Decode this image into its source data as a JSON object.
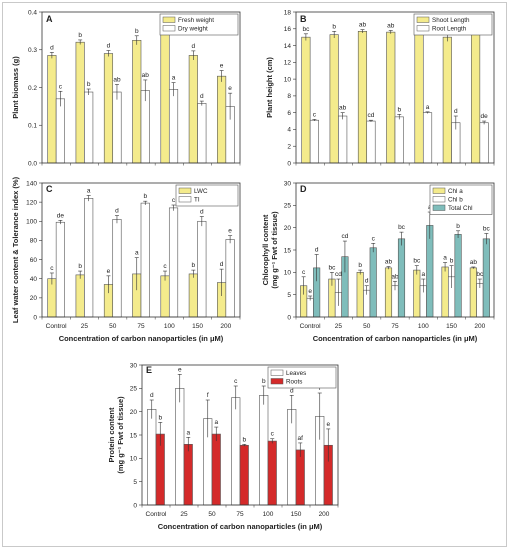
{
  "chart_data": [
    {
      "panel": "A",
      "type": "bar",
      "categories": [
        "Control",
        "25",
        "50",
        "75",
        "100",
        "150",
        "200"
      ],
      "ylabel": "Plant biomass (g)",
      "xlabel": "",
      "ylim": [
        0,
        0.4
      ],
      "yticks": [
        0.0,
        0.1,
        0.2,
        0.3,
        0.4
      ],
      "ytick_labels": [
        "0.0",
        "0.1",
        "0.2",
        "0.3",
        "0.4"
      ],
      "xtick_labels_shown": false,
      "legend_position": "top-right",
      "series": [
        {
          "name": "Fresh weight",
          "color": "#f4eb8c",
          "values": [
            0.285,
            0.32,
            0.29,
            0.325,
            0.345,
            0.285,
            0.23
          ],
          "errors": [
            0.008,
            0.006,
            0.008,
            0.012,
            0.006,
            0.012,
            0.015
          ],
          "letters": [
            "d",
            "b",
            "d",
            "b",
            "a",
            "d",
            "e"
          ]
        },
        {
          "name": "Dry weight",
          "color": "#ffffff",
          "values": [
            0.17,
            0.188,
            0.188,
            0.192,
            0.195,
            0.158,
            0.15
          ],
          "errors": [
            0.02,
            0.008,
            0.02,
            0.028,
            0.018,
            0.006,
            0.035
          ],
          "letters": [
            "c",
            "b",
            "ab",
            "ab",
            "a",
            "d",
            "e"
          ]
        }
      ]
    },
    {
      "panel": "B",
      "type": "bar",
      "categories": [
        "Control",
        "25",
        "50",
        "75",
        "100",
        "150",
        "200"
      ],
      "ylabel": "Plant height (cm)",
      "xlabel": "",
      "ylim": [
        0,
        18
      ],
      "yticks": [
        0,
        2,
        4,
        6,
        8,
        10,
        12,
        14,
        16,
        18
      ],
      "ytick_labels": [
        "0",
        "2",
        "4",
        "6",
        "8",
        "10",
        "12",
        "14",
        "16",
        "18"
      ],
      "xtick_labels_shown": false,
      "legend_position": "top-right",
      "series": [
        {
          "name": "Shoot Length",
          "color": "#f4eb8c",
          "values": [
            15.0,
            15.3,
            15.7,
            15.6,
            16.0,
            15.0,
            15.6
          ],
          "errors": [
            0.4,
            0.4,
            0.2,
            0.2,
            0.1,
            0.5,
            0.3
          ],
          "letters": [
            "bc",
            "b",
            "ab",
            "ab",
            "a",
            "c",
            "ab"
          ]
        },
        {
          "name": "Root Length",
          "color": "#ffffff",
          "values": [
            5.1,
            5.6,
            5.0,
            5.5,
            6.0,
            4.8,
            4.8
          ],
          "errors": [
            0.1,
            0.4,
            0.1,
            0.3,
            0.1,
            0.8,
            0.2
          ],
          "letters": [
            "c",
            "ab",
            "cd",
            "b",
            "a",
            "d",
            "de"
          ]
        }
      ]
    },
    {
      "panel": "C",
      "type": "bar",
      "categories": [
        "Control",
        "25",
        "50",
        "75",
        "100",
        "150",
        "200"
      ],
      "ylabel": "Leaf water content & Tolerance index (%)",
      "xlabel": "Concentration of carbon nanoparticles (in μM)",
      "ylim": [
        0,
        140
      ],
      "yticks": [
        0,
        20,
        40,
        60,
        80,
        100,
        120,
        140
      ],
      "ytick_labels": [
        "0",
        "20",
        "40",
        "60",
        "80",
        "100",
        "120",
        "140"
      ],
      "xtick_labels_shown": true,
      "legend_position": "top-right",
      "series": [
        {
          "name": "LWC",
          "color": "#f4eb8c",
          "values": [
            40,
            44,
            34,
            45,
            43,
            45,
            36
          ],
          "errors": [
            6,
            4,
            9,
            17,
            5,
            4,
            14
          ],
          "letters": [
            "c",
            "b",
            "e",
            "a",
            "c",
            "b",
            "d"
          ]
        },
        {
          "name": "TI",
          "color": "#ffffff",
          "values": [
            99,
            124,
            102,
            119,
            114,
            100,
            81
          ],
          "errors": [
            2,
            3,
            4,
            2,
            3,
            5,
            4
          ],
          "letters": [
            "de",
            "a",
            "d",
            "b",
            "c",
            "d",
            "e"
          ]
        }
      ]
    },
    {
      "panel": "D",
      "type": "bar",
      "categories": [
        "Control",
        "25",
        "50",
        "75",
        "100",
        "150",
        "200"
      ],
      "ylabel": "Chlorophyll content",
      "ylabel2": "(mg g⁻¹ Fwt of tissue)",
      "xlabel": "Concentration of carbon nanoparticles (in μM)",
      "ylim": [
        0,
        30
      ],
      "yticks": [
        0,
        5,
        10,
        15,
        20,
        25,
        30
      ],
      "ytick_labels": [
        "0",
        "5",
        "10",
        "15",
        "20",
        "25",
        "30"
      ],
      "xtick_labels_shown": true,
      "legend_position": "top-right",
      "series": [
        {
          "name": "Chl a",
          "color": "#f4eb8c",
          "values": [
            7.0,
            8.5,
            10.0,
            11.0,
            10.5,
            11.2,
            11.0
          ],
          "errors": [
            2.0,
            1.5,
            0.5,
            0.3,
            1.0,
            1.0,
            0.2
          ],
          "letters": [
            "c",
            "bc",
            "b",
            "ab",
            "bc",
            "a",
            "ab"
          ]
        },
        {
          "name": "Chl b",
          "color": "#ffffff",
          "values": [
            4.2,
            5.5,
            6.0,
            7.0,
            7.0,
            9.0,
            7.5
          ],
          "errors": [
            0.5,
            3.0,
            1.0,
            1.0,
            1.5,
            2.5,
            1.0
          ],
          "letters": [
            "e",
            "cd",
            "d",
            "ab",
            "a",
            "b",
            "bc"
          ]
        },
        {
          "name": "Total Chl",
          "color": "#7fbdbb",
          "values": [
            11.0,
            13.5,
            15.5,
            17.5,
            20.5,
            18.5,
            17.5
          ],
          "errors": [
            3.0,
            3.5,
            1.0,
            1.5,
            3.0,
            0.8,
            1.2
          ],
          "letters": [
            "d",
            "cd",
            "c",
            "bc",
            "a",
            "b",
            "bc"
          ]
        }
      ]
    },
    {
      "panel": "E",
      "type": "bar",
      "categories": [
        "Control",
        "25",
        "50",
        "75",
        "100",
        "150",
        "200"
      ],
      "ylabel": "Protein content",
      "ylabel2": "(mg g⁻¹ Fwt of tissue)",
      "xlabel": "Concentration of carbon nanoparticles (in μM)",
      "ylim": [
        0,
        30
      ],
      "yticks": [
        0,
        5,
        10,
        15,
        20,
        25,
        30
      ],
      "ytick_labels": [
        "0",
        "5",
        "10",
        "15",
        "20",
        "25",
        "30"
      ],
      "xtick_labels_shown": true,
      "legend_position": "top-right",
      "series": [
        {
          "name": "Leaves",
          "color": "#ffffff",
          "values": [
            20.5,
            25.0,
            18.5,
            23.0,
            23.5,
            20.5,
            19.0
          ],
          "errors": [
            2.0,
            3.0,
            4.0,
            2.5,
            2.0,
            3.0,
            5.0
          ],
          "letters": [
            "d",
            "e",
            "f",
            "c",
            "b",
            "d",
            "f"
          ]
        },
        {
          "name": "Roots",
          "color": "#d42a2a",
          "values": [
            15.2,
            13.0,
            15.2,
            12.8,
            13.7,
            11.8,
            12.8
          ],
          "errors": [
            2.5,
            1.5,
            1.5,
            0.2,
            0.5,
            1.5,
            3.5
          ],
          "letters": [
            "b",
            "a",
            "a",
            "b",
            "c",
            "af",
            "e"
          ]
        }
      ]
    }
  ]
}
